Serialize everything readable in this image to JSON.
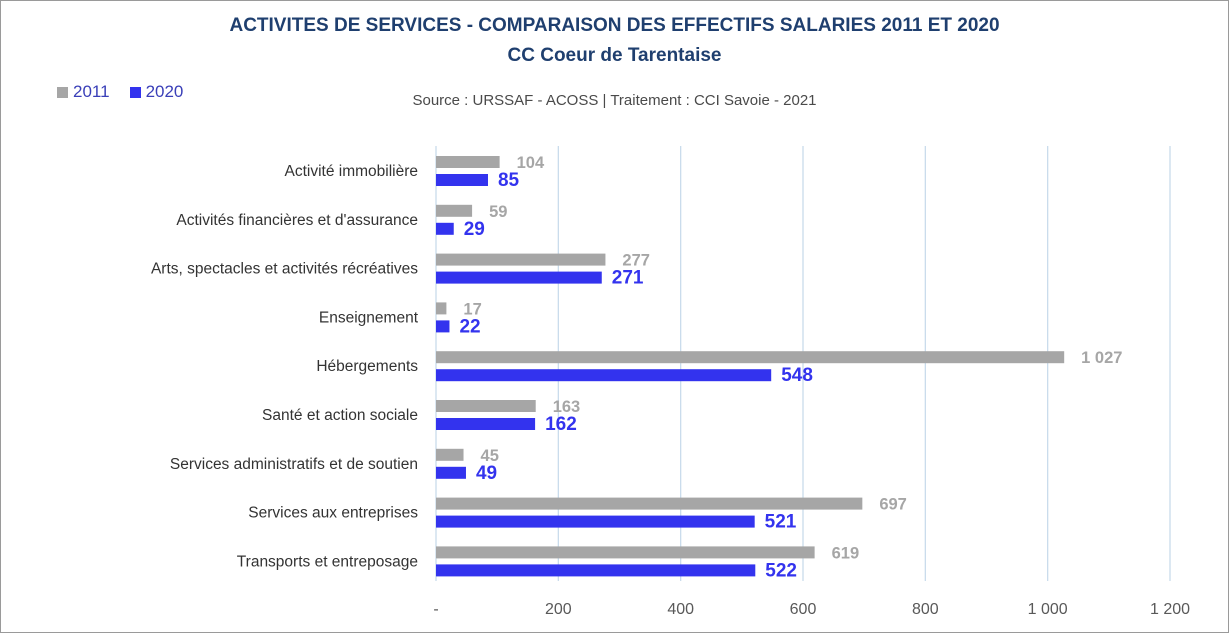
{
  "chart_data": {
    "type": "bar",
    "orientation": "horizontal",
    "title": "ACTIVITES DE SERVICES - COMPARAISON DES EFFECTIFS SALARIES 2011 ET 2020",
    "subtitle": "CC Coeur de Tarentaise",
    "source": "Source  : URSSAF - ACOSS  |  Traitement : CCI Savoie - 2021",
    "categories": [
      "Activité immobilière",
      "Activités financières et d'assurance",
      "Arts, spectacles et activités récréatives",
      "Enseignement",
      "Hébergements",
      "Santé et action sociale",
      "Services administratifs et de soutien",
      "Services aux entreprises",
      "Transports et entreposage"
    ],
    "series": [
      {
        "name": "2011",
        "color": "#a6a6a6",
        "values": [
          104,
          59,
          277,
          17,
          1027,
          163,
          45,
          697,
          619
        ],
        "labels": [
          "104",
          "59",
          "277",
          "17",
          "1 027",
          "163",
          "45",
          "697",
          "619"
        ]
      },
      {
        "name": "2020",
        "color": "#3333ee",
        "values": [
          85,
          29,
          271,
          22,
          548,
          162,
          49,
          521,
          522
        ],
        "labels": [
          "85",
          "29",
          "271",
          "22",
          "548",
          "162",
          "49",
          "521",
          "522"
        ]
      }
    ],
    "xlim": [
      0,
      1200
    ],
    "xticks": [
      0,
      200,
      400,
      600,
      800,
      1000,
      1200
    ],
    "xtick_labels": [
      "-",
      "200",
      "400",
      "600",
      "800",
      "1 000",
      "1 200"
    ],
    "grid": true,
    "legend_position": "top-left"
  },
  "colors": {
    "title": "#1f3f6f",
    "label_2011": "#a6a6a6",
    "label_2020": "#3333ee",
    "grid": "#c9dcec",
    "axis_text": "#595959"
  }
}
